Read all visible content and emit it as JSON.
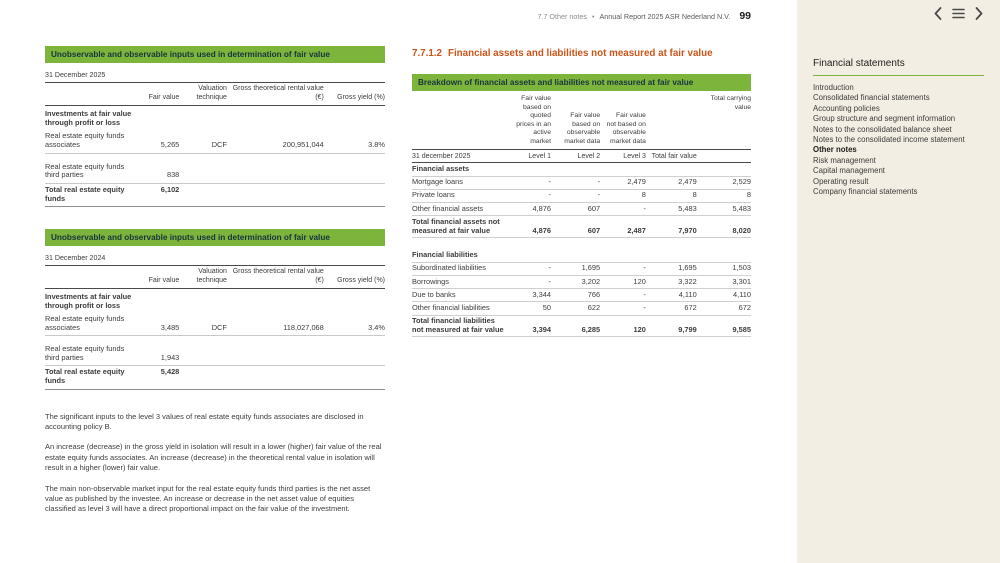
{
  "page_header": {
    "section": "7.7 Other notes",
    "separator": "•",
    "report_title": "Annual Report 2025 ASR Nederland N.V.",
    "page_number": "99"
  },
  "left_column": {
    "tables": [
      {
        "title": "Unobservable and observable inputs used in determination of fair value",
        "date": "31 December 2025",
        "col_headers": [
          "Fair value",
          "Valuation technique",
          "Gross theoretical rental value (€)",
          "Gross yield (%)"
        ],
        "rows": [
          {
            "label": "Investments at fair value through profit or loss",
            "cls": "section",
            "values": [
              "",
              "",
              "",
              ""
            ]
          },
          {
            "label": "Real estate equity funds associates",
            "cls": "line",
            "values": [
              "5,265",
              "DCF",
              "200,951,044",
              "3.8%"
            ]
          },
          {
            "label": "Real estate equity funds third parties",
            "cls": "line gap-sm",
            "values": [
              "838",
              "",
              "",
              ""
            ]
          },
          {
            "label": "Total real estate equity funds",
            "cls": "total dline vtop",
            "values": [
              "6,102",
              "",
              "",
              ""
            ]
          }
        ]
      },
      {
        "title": "Unobservable and observable inputs used in determination of fair value",
        "date": "31 December 2024",
        "col_headers": [
          "Fair value",
          "Valuation technique",
          "Gross theoretical rental value (€)",
          "Gross yield (%)"
        ],
        "rows": [
          {
            "label": "Investments at fair value through profit or loss",
            "cls": "section",
            "values": [
              "",
              "",
              "",
              ""
            ]
          },
          {
            "label": "Real estate equity funds associates",
            "cls": "line",
            "values": [
              "3,485",
              "DCF",
              "118,027,068",
              "3.4%"
            ]
          },
          {
            "label": "Real estate equity funds third parties",
            "cls": "line gap-sm",
            "values": [
              "1,943",
              "",
              "",
              ""
            ]
          },
          {
            "label": "Total real estate equity funds",
            "cls": "total dline vtop",
            "values": [
              "5,428",
              "",
              "",
              ""
            ]
          }
        ]
      }
    ],
    "paragraphs": [
      "The significant inputs to the level 3 values of real estate equity funds associates are disclosed in accounting policy B.",
      "An increase (decrease) in the gross yield in isolation will result in a lower (higher) fair value of the real estate equity funds associates. An increase (decrease) in the theoretical rental value in isolation will result in a higher (lower) fair value.",
      "The main non-observable market input for the real estate equity funds third parties is the net asset value as published by the investee. An increase or decrease in the net asset value of equities classified as level 3 will have a direct proportional impact on the fair value of the investment."
    ]
  },
  "main_section": {
    "heading_number": "7.7.1.2",
    "heading_title": "Financial assets and liabilities not measured at fair value",
    "table": {
      "title": "Breakdown of financial assets and liabilities not measured at fair value",
      "date_label": "31 december 2025",
      "desc_headers": [
        "Fair value based on quoted prices in an active market",
        "Fair value based on observable market data",
        "Fair value not based on observable market data",
        "Total carrying value"
      ],
      "level_headers": [
        "Level 1",
        "Level 2",
        "Level 3",
        "Total fair value"
      ],
      "rows": [
        {
          "label": "Financial assets",
          "cls": "section line",
          "values": [
            "",
            "",
            "",
            "",
            ""
          ]
        },
        {
          "label": "Mortgage loans",
          "cls": "line",
          "values": [
            "-",
            "-",
            "2,479",
            "2,479",
            "2,529"
          ]
        },
        {
          "label": "Private loans",
          "cls": "line",
          "values": [
            "-",
            "-",
            "8",
            "8",
            "8"
          ]
        },
        {
          "label": "Other financial assets",
          "cls": "line",
          "values": [
            "4,876",
            "607",
            "-",
            "5,483",
            "5,483"
          ]
        },
        {
          "label": "Total financial assets not measured at fair value",
          "cls": "total line",
          "values": [
            "4,876",
            "607",
            "2,487",
            "7,970",
            "8,020"
          ]
        },
        {
          "label": "Financial liabilities",
          "cls": "section line gap",
          "values": [
            "",
            "",
            "",
            "",
            ""
          ]
        },
        {
          "label": "Subordinated liabilities",
          "cls": "line",
          "values": [
            "-",
            "1,695",
            "-",
            "1,695",
            "1,503"
          ]
        },
        {
          "label": "Borrowings",
          "cls": "line",
          "values": [
            "-",
            "3,202",
            "120",
            "3,322",
            "3,301"
          ]
        },
        {
          "label": "Due to banks",
          "cls": "line",
          "values": [
            "3,344",
            "766",
            "-",
            "4,110",
            "4,110"
          ]
        },
        {
          "label": "Other financial liabilities",
          "cls": "line",
          "values": [
            "50",
            "622",
            "-",
            "672",
            "672"
          ]
        },
        {
          "label": "Total financial liabilities not measured at fair value",
          "cls": "total line",
          "values": [
            "3,394",
            "6,285",
            "120",
            "9,799",
            "9,585"
          ]
        }
      ]
    }
  },
  "sidebar": {
    "title": "Financial statements",
    "items": [
      {
        "label": "Introduction"
      },
      {
        "label": "Consolidated financial statements"
      },
      {
        "label": "Accounting policies"
      },
      {
        "label": "Group structure and segment information"
      },
      {
        "label": "Notes to the consolidated balance sheet"
      },
      {
        "label": "Notes to the consolidated income statement"
      },
      {
        "label": "Other notes",
        "active": true
      },
      {
        "label": "Risk management"
      },
      {
        "label": "Capital management"
      },
      {
        "label": "Operating result"
      },
      {
        "label": "Company financial statements"
      }
    ]
  },
  "colors": {
    "accent_green": "#7db53c",
    "heading_color": "#cb5418",
    "sidebar_bg": "#f3eee3"
  }
}
